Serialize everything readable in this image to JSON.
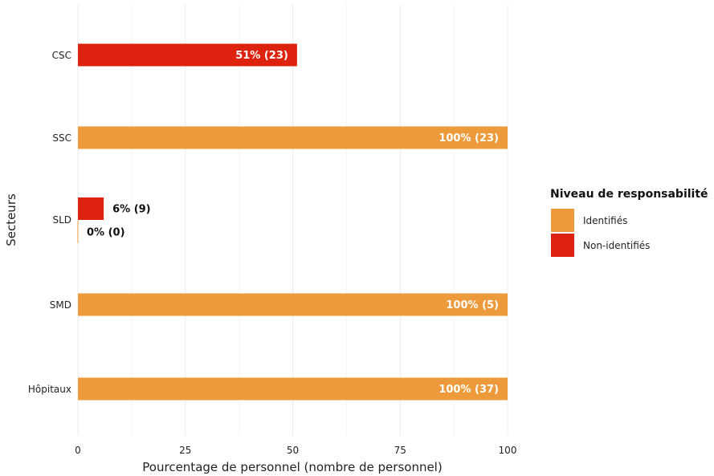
{
  "chart_data": {
    "type": "bar",
    "orientation": "horizontal",
    "xlabel": "Pourcentage de personnel (nombre de personnel)",
    "ylabel": "Secteurs",
    "xlim": [
      0,
      100
    ],
    "xticks": [
      0,
      25,
      50,
      75,
      100
    ],
    "grid": true,
    "categories": [
      "CSC",
      "SSC",
      "SLD",
      "SMD",
      "Hôpitaux"
    ],
    "series": [
      {
        "name": "Identifiés",
        "color": "#ED9A3A",
        "values": [
          null,
          100,
          0,
          100,
          100
        ],
        "labels": [
          null,
          "100% (23)",
          "0% (0)",
          "100% (5)",
          "100% (37)"
        ]
      },
      {
        "name": "Non-identifiés",
        "color": "#DD2310",
        "values": [
          51,
          null,
          6,
          null,
          null
        ],
        "labels": [
          "51% (23)",
          null,
          "6% (9)",
          null,
          null
        ]
      }
    ],
    "legend": {
      "title": "Niveau de responsabilité",
      "position": "right"
    }
  }
}
